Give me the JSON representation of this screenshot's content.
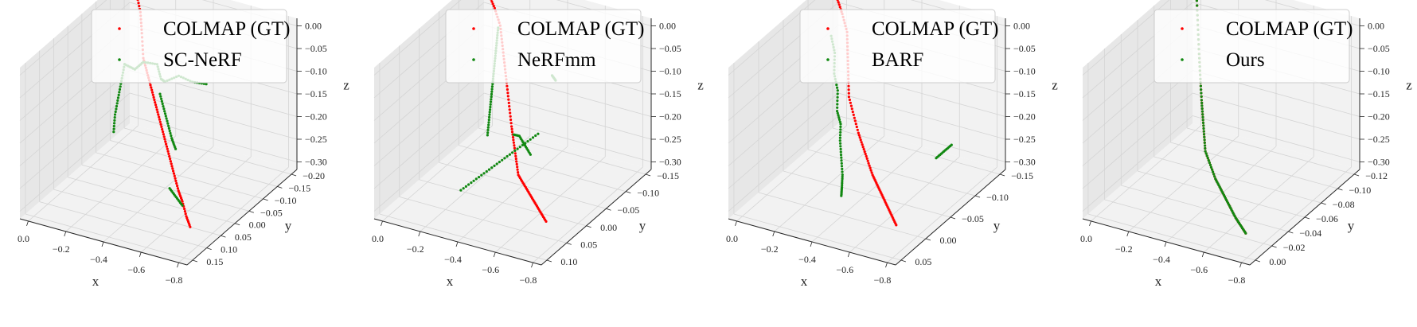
{
  "chart_data": [
    {
      "type": "scatter",
      "legend": [
        "COLMAP (GT)",
        "SC-NeRF"
      ],
      "xlabel": "x",
      "ylabel": "y",
      "zlabel": "z",
      "xticks": [
        "0.0",
        "−0.2",
        "−0.4",
        "−0.6",
        "−0.8"
      ],
      "yticks": [
        "0.15",
        "0.10",
        "0.05",
        "0.00",
        "−0.05",
        "−0.10",
        "−0.15",
        "−0.20"
      ],
      "zticks": [
        "0.00",
        "−0.05",
        "−0.10",
        "−0.15",
        "−0.20",
        "−0.25",
        "−0.30"
      ],
      "xlim": [
        0.0,
        -0.85
      ],
      "ylim": [
        0.18,
        -0.22
      ],
      "zlim": [
        -0.34,
        0.0
      ],
      "gt": {
        "x": [
          -0.05,
          -0.1,
          -0.15,
          -0.2,
          -0.25,
          -0.3,
          -0.35,
          -0.4,
          -0.45,
          -0.5,
          -0.55,
          -0.6,
          -0.65,
          -0.7,
          -0.75,
          -0.8
        ],
        "y": [
          -0.2,
          -0.18,
          -0.15,
          -0.12,
          -0.1,
          -0.08,
          -0.06,
          -0.04,
          -0.02,
          0.0,
          0.02,
          0.04,
          0.06,
          0.08,
          0.1,
          0.12
        ],
        "z": [
          0.0,
          -0.03,
          -0.06,
          -0.1,
          -0.12,
          -0.14,
          -0.16,
          -0.18,
          -0.2,
          -0.22,
          -0.24,
          -0.26,
          -0.28,
          -0.29,
          -0.31,
          -0.32
        ]
      },
      "pred": [
        {
          "x": [
            -0.15,
            -0.18,
            -0.2,
            -0.25,
            -0.3,
            -0.35,
            -0.4,
            -0.45,
            -0.5
          ],
          "y": [
            -0.08,
            -0.1,
            -0.12,
            -0.14,
            -0.12,
            -0.1,
            -0.12,
            -0.14,
            -0.16
          ],
          "z": [
            -0.1,
            -0.12,
            -0.11,
            -0.12,
            -0.14,
            -0.13,
            -0.12,
            -0.14,
            -0.15
          ]
        },
        {
          "x": [
            -0.15,
            -0.16,
            -0.17,
            -0.18,
            -0.2
          ],
          "y": [
            -0.08,
            -0.06,
            -0.04,
            -0.02,
            0.0
          ],
          "z": [
            -0.1,
            -0.13,
            -0.16,
            -0.19,
            -0.22
          ]
        },
        {
          "x": [
            -0.35,
            -0.4,
            -0.45,
            -0.5,
            -0.55
          ],
          "y": [
            -0.08,
            -0.06,
            -0.04,
            -0.02,
            0.0
          ],
          "z": [
            -0.15,
            -0.17,
            -0.19,
            -0.21,
            -0.22
          ]
        },
        {
          "x": [
            -0.6,
            -0.65,
            -0.7
          ],
          "y": [
            0.06,
            0.07,
            0.08
          ],
          "z": [
            -0.28,
            -0.29,
            -0.3
          ]
        }
      ]
    },
    {
      "type": "scatter",
      "legend": [
        "COLMAP (GT)",
        "NeRFmm"
      ],
      "xlabel": "x",
      "ylabel": "y",
      "zlabel": "z",
      "xticks": [
        "0.0",
        "−0.2",
        "−0.4",
        "−0.6",
        "−0.8"
      ],
      "yticks": [
        "0.10",
        "0.05",
        "0.00",
        "−0.05",
        "−0.10",
        "−0.15"
      ],
      "zticks": [
        "0.00",
        "−0.05",
        "−0.10",
        "−0.15",
        "−0.20",
        "−0.25",
        "−0.30"
      ],
      "xlim": [
        0.0,
        -0.85
      ],
      "ylim": [
        0.12,
        -0.18
      ],
      "zlim": [
        -0.34,
        0.0
      ],
      "gt": {
        "x": [
          -0.05,
          -0.1,
          -0.15,
          -0.2,
          -0.25,
          -0.3,
          -0.35,
          -0.4,
          -0.45,
          -0.5,
          -0.55,
          -0.6,
          -0.65,
          -0.7,
          -0.75,
          -0.8
        ],
        "y": [
          -0.16,
          -0.15,
          -0.14,
          -0.12,
          -0.1,
          -0.08,
          -0.06,
          -0.04,
          -0.02,
          0.0,
          0.02,
          0.03,
          0.04,
          0.05,
          0.06,
          0.07
        ],
        "z": [
          0.0,
          -0.02,
          -0.05,
          -0.08,
          -0.11,
          -0.14,
          -0.17,
          -0.2,
          -0.22,
          -0.24,
          -0.26,
          -0.27,
          -0.28,
          -0.29,
          -0.3,
          -0.31
        ]
      },
      "pred": [
        {
          "x": [
            -0.25,
            -0.26,
            -0.27,
            -0.28,
            -0.29,
            -0.3,
            -0.31,
            -0.32
          ],
          "y": [
            -0.08,
            -0.07,
            -0.06,
            -0.05,
            -0.04,
            -0.03,
            -0.02,
            -0.01
          ],
          "z": [
            0.0,
            -0.03,
            -0.06,
            -0.09,
            -0.12,
            -0.15,
            -0.18,
            -0.21
          ]
        },
        {
          "x": [
            -0.3,
            -0.35,
            -0.4,
            -0.45,
            -0.5,
            -0.55
          ],
          "y": [
            0.06,
            0.04,
            0.02,
            0.0,
            -0.02,
            -0.04
          ],
          "z": [
            -0.3,
            -0.28,
            -0.26,
            -0.24,
            -0.22,
            -0.2
          ]
        },
        {
          "x": [
            -0.45,
            -0.5,
            -0.55,
            -0.6
          ],
          "y": [
            -0.02,
            -0.01,
            0.0,
            0.01
          ],
          "z": [
            -0.2,
            -0.19,
            -0.2,
            -0.21
          ]
        },
        {
          "x": [
            -0.48,
            -0.5
          ],
          "y": [
            -0.12,
            -0.12
          ],
          "z": [
            -0.12,
            -0.13
          ]
        }
      ]
    },
    {
      "type": "scatter",
      "legend": [
        "COLMAP (GT)",
        "BARF"
      ],
      "xlabel": "x",
      "ylabel": "y",
      "zlabel": "z",
      "xticks": [
        "0.0",
        "−0.2",
        "−0.4",
        "−0.6",
        "−0.8"
      ],
      "yticks": [
        "0.05",
        "0.00",
        "−0.05",
        "−0.10",
        "−0.15"
      ],
      "zticks": [
        "0.00",
        "−0.05",
        "−0.10",
        "−0.15",
        "−0.20",
        "−0.25",
        "−0.30"
      ],
      "xlim": [
        0.0,
        -0.85
      ],
      "ylim": [
        0.07,
        -0.17
      ],
      "zlim": [
        -0.34,
        0.0
      ],
      "gt": {
        "x": [
          -0.05,
          -0.1,
          -0.15,
          -0.2,
          -0.25,
          -0.3,
          -0.35,
          -0.4,
          -0.45,
          -0.5,
          -0.55,
          -0.6,
          -0.65,
          -0.7,
          -0.75,
          -0.8
        ],
        "y": [
          -0.14,
          -0.13,
          -0.12,
          -0.1,
          -0.08,
          -0.06,
          -0.05,
          -0.04,
          -0.03,
          -0.02,
          -0.01,
          0.0,
          0.01,
          0.02,
          0.03,
          0.04
        ],
        "z": [
          0.0,
          -0.02,
          -0.05,
          -0.08,
          -0.11,
          -0.14,
          -0.17,
          -0.2,
          -0.22,
          -0.24,
          -0.26,
          -0.27,
          -0.28,
          -0.29,
          -0.3,
          -0.31
        ]
      },
      "pred": [
        {
          "x": [
            -0.2,
            -0.22,
            -0.24,
            -0.26,
            -0.28,
            -0.3,
            -0.32,
            -0.35,
            -0.38,
            -0.4,
            -0.42
          ],
          "y": [
            -0.06,
            -0.06,
            -0.05,
            -0.05,
            -0.04,
            -0.04,
            -0.03,
            -0.02,
            -0.01,
            0.0,
            0.01
          ],
          "z": [
            0.0,
            -0.04,
            -0.08,
            -0.12,
            -0.16,
            -0.19,
            -0.22,
            -0.25,
            -0.28,
            -0.3,
            -0.31
          ]
        },
        {
          "x": [
            -0.7,
            -0.72,
            -0.74
          ],
          "y": [
            -0.1,
            -0.11,
            -0.12
          ],
          "z": [
            -0.28,
            -0.27,
            -0.26
          ]
        }
      ]
    },
    {
      "type": "scatter",
      "legend": [
        "COLMAP (GT)",
        "Ours"
      ],
      "xlabel": "x",
      "ylabel": "y",
      "zlabel": "z",
      "xticks": [
        "0.0",
        "−0.2",
        "−0.4",
        "−0.6",
        "−0.8"
      ],
      "yticks": [
        "0.00",
        "−0.02",
        "−0.04",
        "−0.06",
        "−0.08",
        "−0.10",
        "−0.12"
      ],
      "zticks": [
        "0.00",
        "−0.05",
        "−0.10",
        "−0.15",
        "−0.20",
        "−0.25",
        "−0.30"
      ],
      "xlim": [
        0.0,
        -0.85
      ],
      "ylim": [
        0.0,
        -0.13
      ],
      "zlim": [
        -0.34,
        0.0
      ],
      "gt": {
        "x": [
          -0.05,
          -0.1,
          -0.15,
          -0.2,
          -0.25,
          -0.3,
          -0.35,
          -0.4,
          -0.45,
          -0.5,
          -0.55,
          -0.6,
          -0.65,
          -0.7,
          -0.75,
          -0.8
        ],
        "y": [
          -0.12,
          -0.11,
          -0.1,
          -0.09,
          -0.08,
          -0.07,
          -0.06,
          -0.05,
          -0.045,
          -0.04,
          -0.035,
          -0.03,
          -0.025,
          -0.02,
          -0.015,
          -0.01
        ],
        "z": [
          0.0,
          -0.05,
          -0.1,
          -0.14,
          -0.17,
          -0.19,
          -0.21,
          -0.23,
          -0.25,
          -0.27,
          -0.28,
          -0.29,
          -0.3,
          -0.31,
          -0.315,
          -0.32
        ]
      },
      "pred": [
        {
          "x": [
            -0.05,
            -0.1,
            -0.15,
            -0.2,
            -0.25,
            -0.3,
            -0.35,
            -0.4,
            -0.45,
            -0.5,
            -0.55,
            -0.6,
            -0.65,
            -0.7,
            -0.75,
            -0.8
          ],
          "y": [
            -0.12,
            -0.11,
            -0.1,
            -0.09,
            -0.08,
            -0.07,
            -0.06,
            -0.05,
            -0.045,
            -0.04,
            -0.035,
            -0.03,
            -0.025,
            -0.02,
            -0.015,
            -0.01
          ],
          "z": [
            0.0,
            -0.05,
            -0.1,
            -0.14,
            -0.17,
            -0.19,
            -0.21,
            -0.23,
            -0.25,
            -0.27,
            -0.28,
            -0.29,
            -0.3,
            -0.31,
            -0.315,
            -0.32
          ]
        }
      ]
    }
  ],
  "colors": {
    "gt": "#ff0000",
    "pred": "#118811",
    "pane": "#f2f2f2",
    "pane_dark": "#e7e7e7",
    "grid": "#d4d4d4",
    "axis": "#262626"
  }
}
